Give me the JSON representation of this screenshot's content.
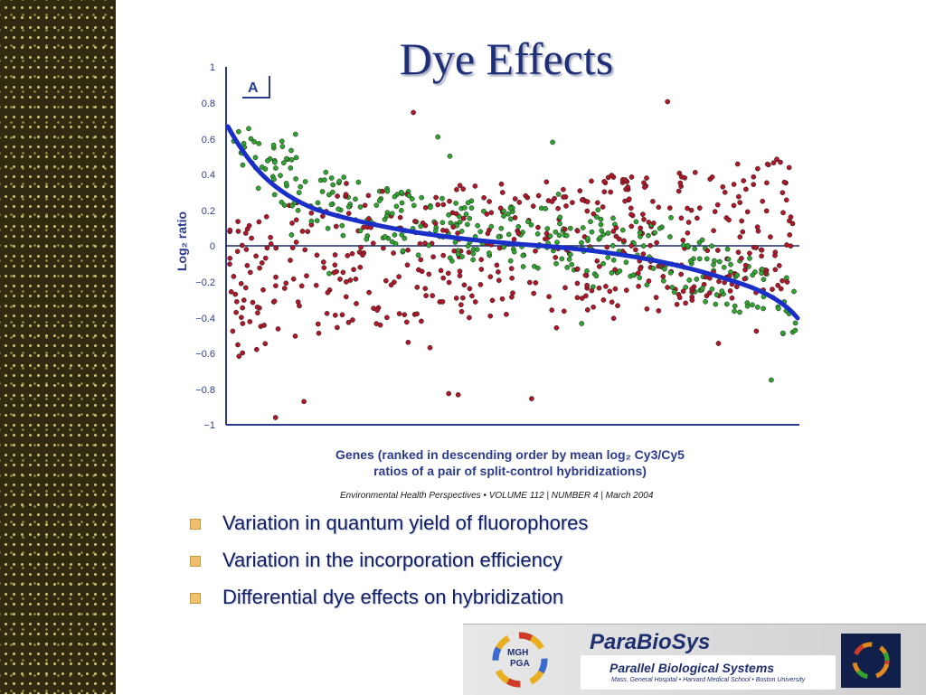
{
  "slide": {
    "title": "Dye Effects",
    "citation": "Environmental Health Perspectives • VOLUME 112 | NUMBER 4 | March 2004",
    "bullets": [
      "Variation in quantum yield of fluorophores",
      "Variation in the incorporation efficiency",
      "Differential dye effects on hybridization"
    ]
  },
  "figure": {
    "panel_label": "A",
    "y_ticks": [
      "1",
      "0.8",
      "0.6",
      "0.4",
      "0.2",
      "0",
      "−0.2",
      "−0.4",
      "−0.6",
      "−0.8",
      "−1"
    ],
    "y_label": "Log₂ ratio",
    "x_label_line1": "Genes (ranked in descending order by mean log₂ Cy3/Cy5",
    "x_label_line2": "ratios of a pair of split-control hybridizations)",
    "colors": {
      "series_a": "#b0182a",
      "series_b": "#2fa52f",
      "trend": "#1a2fc8",
      "axis": "#2b3b8f"
    }
  },
  "banner": {
    "logo_line1": "MGH",
    "logo_line2": "PGA",
    "name": "ParaBioSys",
    "subtitle": "Parallel Biological Systems",
    "orgs": "Mass. General Hospital • Harvard Medical School • Boston University"
  }
}
